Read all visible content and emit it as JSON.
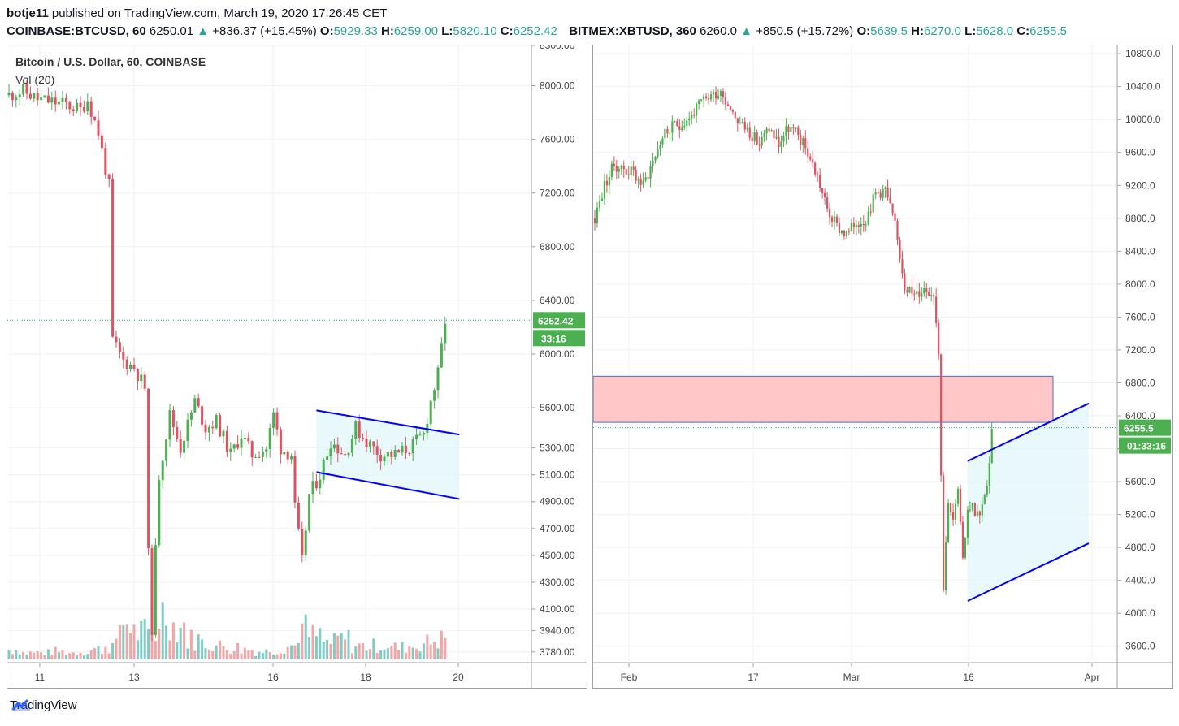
{
  "header": {
    "author": "botje11",
    "published_text": "published on TradingView.com, March 19, 2020 17:26:45 CET"
  },
  "left_chart": {
    "symbol": "COINBASE:BTCUSD, 60",
    "last": "6250.01",
    "change": "+836.37 (+15.45%)",
    "open_label": "O:",
    "open": "5929.33",
    "high_label": "H:",
    "high": "6259.00",
    "low_label": "L:",
    "low": "5820.10",
    "close_label": "C:",
    "close": "6252.42",
    "legend_title": "Bitcoin / U.S. Dollar, 60, COINBASE",
    "legend_vol": "Vol (20)",
    "price_tag": "6252.42",
    "time_tag": "33:16"
  },
  "right_chart": {
    "symbol": "BITMEX:XBTUSD, 360",
    "last": "6260.0",
    "change": "+850.5 (+15.72%)",
    "open_label": "O:",
    "open": "5639.5",
    "high_label": "H:",
    "high": "6270.0",
    "low_label": "L:",
    "low": "5628.0",
    "close_label": "C:",
    "close": "6255.5",
    "price_tag": "6255.5",
    "time_tag": "01:33:16"
  },
  "footer": {
    "brand": "TradingView"
  },
  "colors": {
    "up": "#26a69a",
    "down": "#ef5350",
    "up_candle": "#4caf50",
    "down_candle": "#e05260",
    "trendline": "#0000ff",
    "channel_fill": "#e0f7fa",
    "zone_fill": "#ffc7c7",
    "zone_border": "#4a6cd4",
    "tag_bg": "#4caf50"
  },
  "chart_data": [
    {
      "type": "candlestick",
      "title": "Bitcoin / U.S. Dollar, 60, COINBASE",
      "ylim": [
        3700,
        8300
      ],
      "y_ticks": [
        "8300.00",
        "8000.00",
        "7600.00",
        "7200.00",
        "6800.00",
        "6400.00",
        "6000.00",
        "5600.00",
        "5300.00",
        "5100.00",
        "4900.00",
        "4700.00",
        "4500.00",
        "4300.00",
        "4100.00",
        "3940.00",
        "3780.00"
      ],
      "x_ticks": [
        "11",
        "13",
        "16",
        "18",
        "20"
      ],
      "price_path": [
        [
          0,
          7930
        ],
        [
          4,
          7960
        ],
        [
          8,
          7900
        ],
        [
          12,
          7880
        ],
        [
          16,
          7860
        ],
        [
          20,
          7820
        ],
        [
          22,
          7900
        ],
        [
          25,
          7650
        ],
        [
          28,
          7250
        ],
        [
          29,
          6100
        ],
        [
          32,
          5950
        ],
        [
          35,
          5900
        ],
        [
          38,
          5750
        ],
        [
          39,
          4500
        ],
        [
          40,
          3960
        ],
        [
          42,
          5100
        ],
        [
          45,
          5550
        ],
        [
          48,
          5300
        ],
        [
          52,
          5650
        ],
        [
          55,
          5450
        ],
        [
          58,
          5500
        ],
        [
          62,
          5250
        ],
        [
          65,
          5400
        ],
        [
          68,
          5250
        ],
        [
          72,
          5300
        ],
        [
          74,
          5550
        ],
        [
          76,
          5300
        ],
        [
          79,
          5250
        ],
        [
          80,
          4850
        ],
        [
          82,
          4450
        ],
        [
          84,
          4950
        ],
        [
          87,
          5100
        ],
        [
          90,
          5350
        ],
        [
          94,
          5250
        ],
        [
          97,
          5450
        ],
        [
          100,
          5350
        ],
        [
          104,
          5250
        ],
        [
          108,
          5250
        ],
        [
          112,
          5300
        ],
        [
          116,
          5400
        ],
        [
          118,
          5650
        ],
        [
          120,
          5850
        ],
        [
          122,
          6250
        ]
      ],
      "volume_peaks": [
        0.15,
        0.1,
        0.1,
        0.12,
        0.1,
        0.12,
        0.15,
        0.2,
        0.55,
        0.4,
        0.35,
        0.7,
        0.5,
        0.3,
        0.25,
        0.2,
        0.18,
        0.15,
        0.12,
        0.15,
        0.2,
        0.45,
        0.35,
        0.25,
        0.3,
        0.2,
        0.2,
        0.22,
        0.18,
        0.2,
        0.25,
        0.3
      ],
      "channel": {
        "upper": [
          [
            86,
            5580
          ],
          [
            126,
            5400
          ]
        ],
        "lower": [
          [
            86,
            5120
          ],
          [
            126,
            4920
          ]
        ]
      },
      "last_price": 6252.42
    },
    {
      "type": "candlestick",
      "title": "BITMEX:XBTUSD, 360",
      "ylim": [
        3400,
        10900
      ],
      "y_ticks": [
        "10800.0",
        "10400.0",
        "10000.0",
        "9600.0",
        "9200.0",
        "8800.0",
        "8400.0",
        "8000.0",
        "7600.0",
        "7200.0",
        "6800.0",
        "6400.0",
        "6000.0",
        "5600.0",
        "5200.0",
        "4800.0",
        "4400.0",
        "4000.0",
        "3600.0"
      ],
      "x_ticks": [
        "Feb",
        "17",
        "Mar",
        "16",
        "Apr"
      ],
      "price_path": [
        [
          0,
          8800
        ],
        [
          4,
          9200
        ],
        [
          8,
          9450
        ],
        [
          12,
          9400
        ],
        [
          16,
          9350
        ],
        [
          20,
          9200
        ],
        [
          24,
          9500
        ],
        [
          28,
          9800
        ],
        [
          32,
          9900
        ],
        [
          36,
          9950
        ],
        [
          40,
          10050
        ],
        [
          44,
          10200
        ],
        [
          48,
          10300
        ],
        [
          52,
          10350
        ],
        [
          56,
          10150
        ],
        [
          60,
          9950
        ],
        [
          64,
          9850
        ],
        [
          68,
          9700
        ],
        [
          72,
          9900
        ],
        [
          76,
          9700
        ],
        [
          80,
          9900
        ],
        [
          84,
          9800
        ],
        [
          88,
          9600
        ],
        [
          92,
          9300
        ],
        [
          96,
          8900
        ],
        [
          100,
          8700
        ],
        [
          104,
          8600
        ],
        [
          108,
          8750
        ],
        [
          112,
          8800
        ],
        [
          116,
          9100
        ],
        [
          120,
          9150
        ],
        [
          124,
          8700
        ],
        [
          128,
          8000
        ],
        [
          132,
          7850
        ],
        [
          136,
          7950
        ],
        [
          140,
          7900
        ],
        [
          142,
          7200
        ],
        [
          144,
          4300
        ],
        [
          146,
          5400
        ],
        [
          148,
          5100
        ],
        [
          150,
          5500
        ],
        [
          152,
          4600
        ],
        [
          154,
          5300
        ],
        [
          156,
          5300
        ],
        [
          158,
          5200
        ],
        [
          160,
          5300
        ],
        [
          162,
          5500
        ],
        [
          164,
          6250
        ]
      ],
      "zone": {
        "top": 6880,
        "bottom": 6320
      },
      "channel": {
        "upper": [
          [
            154,
            5850
          ],
          [
            204,
            6550
          ]
        ],
        "lower": [
          [
            154,
            4150
          ],
          [
            204,
            4850
          ]
        ]
      },
      "last_price": 6255.5
    }
  ]
}
